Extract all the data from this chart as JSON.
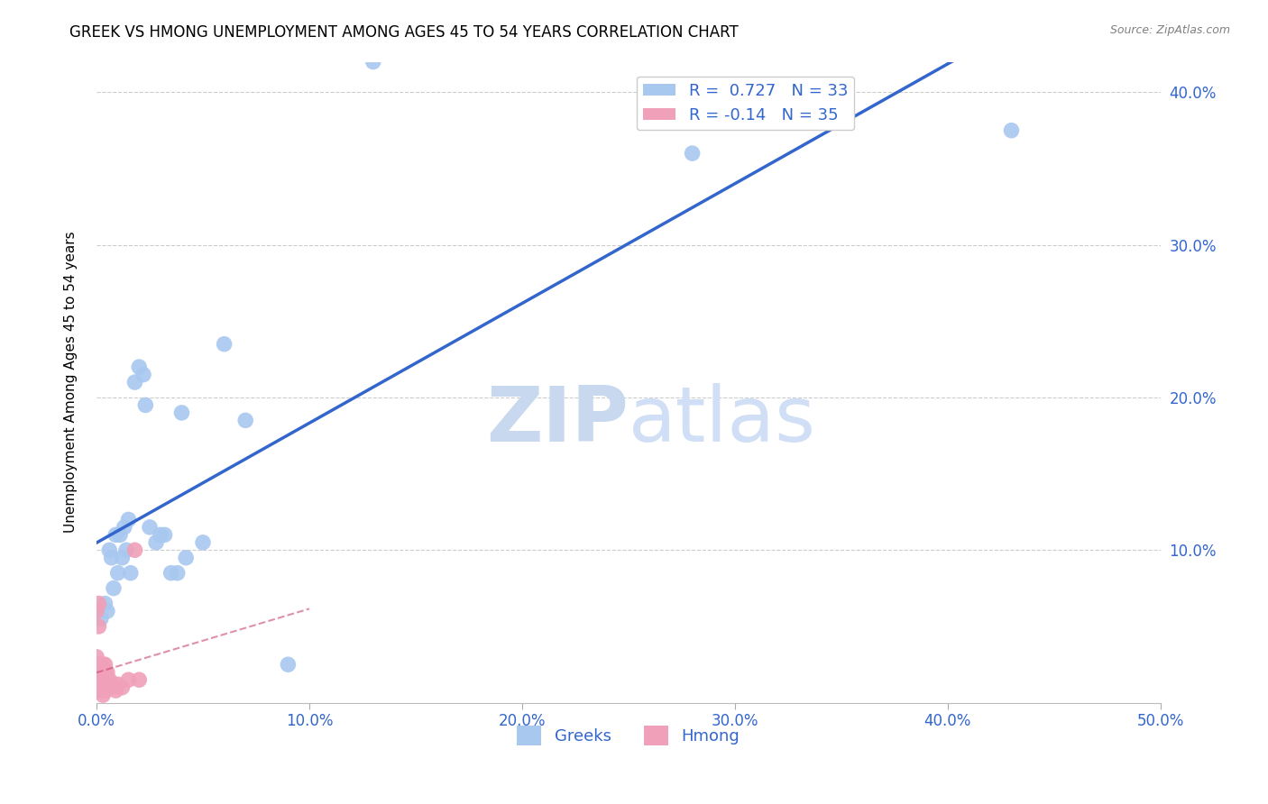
{
  "title": "GREEK VS HMONG UNEMPLOYMENT AMONG AGES 45 TO 54 YEARS CORRELATION CHART",
  "source": "Source: ZipAtlas.com",
  "ylabel": "Unemployment Among Ages 45 to 54 years",
  "xlim": [
    0.0,
    0.5
  ],
  "ylim": [
    0.0,
    0.42
  ],
  "xticks": [
    0.0,
    0.1,
    0.2,
    0.3,
    0.4,
    0.5
  ],
  "yticks": [
    0.1,
    0.2,
    0.3,
    0.4
  ],
  "greek_R": 0.727,
  "greek_N": 33,
  "hmong_R": -0.14,
  "hmong_N": 35,
  "greek_color": "#a8c8f0",
  "greek_line_color": "#3366cc",
  "hmong_color": "#f0a0b8",
  "hmong_line_color": "#cc4477",
  "greek_x": [
    0.002,
    0.004,
    0.005,
    0.006,
    0.007,
    0.008,
    0.009,
    0.01,
    0.011,
    0.012,
    0.013,
    0.014,
    0.015,
    0.016,
    0.018,
    0.02,
    0.022,
    0.023,
    0.025,
    0.028,
    0.03,
    0.032,
    0.035,
    0.038,
    0.04,
    0.042,
    0.05,
    0.06,
    0.07,
    0.09,
    0.13,
    0.28,
    0.43
  ],
  "greek_y": [
    0.055,
    0.065,
    0.06,
    0.1,
    0.095,
    0.075,
    0.11,
    0.085,
    0.11,
    0.095,
    0.115,
    0.1,
    0.12,
    0.085,
    0.21,
    0.22,
    0.215,
    0.195,
    0.115,
    0.105,
    0.11,
    0.11,
    0.085,
    0.085,
    0.19,
    0.095,
    0.105,
    0.235,
    0.185,
    0.025,
    0.42,
    0.36,
    0.375
  ],
  "hmong_x": [
    0.0,
    0.0,
    0.0,
    0.0,
    0.0,
    0.001,
    0.001,
    0.001,
    0.001,
    0.001,
    0.001,
    0.002,
    0.002,
    0.002,
    0.002,
    0.003,
    0.003,
    0.003,
    0.003,
    0.003,
    0.004,
    0.004,
    0.004,
    0.004,
    0.005,
    0.005,
    0.006,
    0.007,
    0.008,
    0.009,
    0.01,
    0.012,
    0.015,
    0.018,
    0.02
  ],
  "hmong_y": [
    0.015,
    0.02,
    0.025,
    0.03,
    0.06,
    0.008,
    0.012,
    0.018,
    0.025,
    0.05,
    0.065,
    0.008,
    0.012,
    0.02,
    0.025,
    0.005,
    0.01,
    0.015,
    0.018,
    0.025,
    0.008,
    0.012,
    0.02,
    0.025,
    0.01,
    0.02,
    0.015,
    0.01,
    0.012,
    0.008,
    0.012,
    0.01,
    0.015,
    0.1,
    0.015
  ],
  "background_color": "#ffffff",
  "grid_color": "#cccccc",
  "title_fontsize": 12,
  "axis_label_fontsize": 11,
  "tick_fontsize": 12,
  "legend_fontsize": 13,
  "watermark": "ZIPatlas"
}
